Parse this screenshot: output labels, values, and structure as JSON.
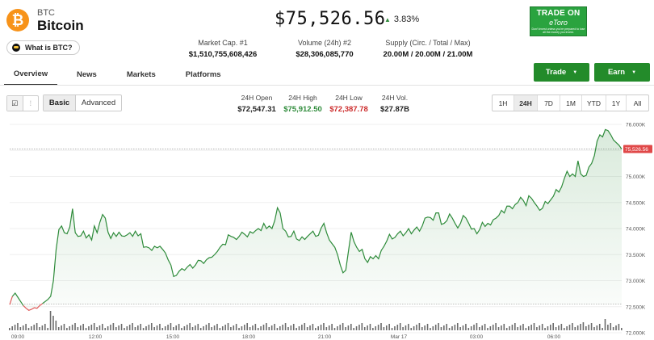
{
  "coin": {
    "symbol": "BTC",
    "name": "Bitcoin",
    "icon_glyph": "₿",
    "icon": "bitcoin-icon",
    "what_is": "What is BTC?"
  },
  "price": {
    "value": "$75,526.56",
    "change": "3.83%",
    "direction": "up"
  },
  "stats": [
    {
      "label": "Market Cap. #1",
      "value": "$1,510,755,608,426"
    },
    {
      "label": "Volume (24h) #2",
      "value": "$28,306,085,770"
    },
    {
      "label": "Supply (Circ. / Total / Max)",
      "value": "20.00M / 20.00M / 21.00M"
    }
  ],
  "ad": {
    "line1": "TRADE ON",
    "line2": "eToro",
    "disclaimer": "Don't invest unless you're prepared to lose all the money you invest."
  },
  "tabs": [
    {
      "label": "Overview",
      "active": true
    },
    {
      "label": "News"
    },
    {
      "label": "Markets"
    },
    {
      "label": "Platforms"
    }
  ],
  "actions": {
    "trade": "Trade",
    "earn": "Earn"
  },
  "chart_mode": {
    "basic": "Basic",
    "advanced": "Advanced"
  },
  "ohlc": [
    {
      "label": "24H Open",
      "value": "$72,547.31",
      "color": "#222222"
    },
    {
      "label": "24H High",
      "value": "$75,912.50",
      "color": "#2e8b3a"
    },
    {
      "label": "24H Low",
      "value": "$72,387.78",
      "color": "#cc2b2b"
    },
    {
      "label": "24H Vol.",
      "value": "$27.87B",
      "color": "#222222"
    }
  ],
  "ranges": [
    "1H",
    "24H",
    "7D",
    "1M",
    "YTD",
    "1Y",
    "All"
  ],
  "active_range": "24H",
  "colors": {
    "accent_green": "#238b2a",
    "line_up": "#2e8b3a",
    "line_down": "#e05b5b",
    "price_label": "#e04848"
  },
  "chart_data": {
    "type": "line",
    "x_ticks": [
      "09:00",
      "12:00",
      "15:00",
      "18:00",
      "21:00",
      "Mar 17",
      "03:00",
      "06:00"
    ],
    "y_ticks": [
      "76.000K",
      "75.500K",
      "75.000K",
      "74.500K",
      "74.000K",
      "73.500K",
      "73.000K",
      "72.500K",
      "72.000K"
    ],
    "ylim": [
      72000,
      76000
    ],
    "open": 72547.31,
    "last_price_label": "75,526.56",
    "last_price": 75526.56,
    "price": [
      72540,
      72700,
      72760,
      72680,
      72600,
      72520,
      72470,
      72430,
      72450,
      72480,
      72470,
      72520,
      72560,
      72600,
      72640,
      72700,
      73000,
      73600,
      73980,
      74050,
      73920,
      73900,
      74030,
      74380,
      73920,
      73850,
      73860,
      73950,
      73820,
      73880,
      73780,
      74050,
      73920,
      74120,
      74270,
      74200,
      73930,
      73810,
      73920,
      73850,
      73930,
      73860,
      73850,
      73880,
      73920,
      73850,
      73950,
      73860,
      73900,
      73640,
      73650,
      73630,
      73580,
      73660,
      73630,
      73660,
      73600,
      73530,
      73400,
      73300,
      73080,
      73100,
      73180,
      73230,
      73200,
      73260,
      73310,
      73240,
      73300,
      73390,
      73380,
      73330,
      73400,
      73440,
      73450,
      73500,
      73560,
      73640,
      73700,
      73690,
      73880,
      73850,
      73830,
      73790,
      73850,
      73930,
      73890,
      73840,
      73940,
      73910,
      73960,
      74000,
      73960,
      74100,
      74000,
      74050,
      74000,
      74150,
      74400,
      74300,
      74000,
      73950,
      73840,
      73850,
      73950,
      73800,
      73770,
      73840,
      73790,
      73850,
      73900,
      73950,
      73850,
      73870,
      74010,
      74100,
      73920,
      73780,
      73710,
      73640,
      73500,
      73300,
      73150,
      73200,
      73570,
      73930,
      73750,
      73640,
      73560,
      73600,
      73420,
      73350,
      73460,
      73420,
      73480,
      73420,
      73580,
      73660,
      73760,
      73890,
      73800,
      73830,
      73900,
      73950,
      73860,
      73920,
      74000,
      73900,
      73970,
      74030,
      73950,
      74050,
      74200,
      74220,
      74210,
      74160,
      74300,
      74300,
      74080,
      74100,
      74150,
      74280,
      74200,
      74100,
      74010,
      74100,
      74250,
      74200,
      74100,
      73990,
      74000,
      73900,
      73980,
      74120,
      74040,
      74100,
      74070,
      74170,
      74200,
      74250,
      74350,
      74300,
      74430,
      74430,
      74380,
      74460,
      74500,
      74600,
      74540,
      74440,
      74630,
      74580,
      74500,
      74430,
      74350,
      74390,
      74520,
      74480,
      74550,
      74620,
      74750,
      74700,
      74800,
      74960,
      75100,
      75000,
      75050,
      75000,
      75300,
      75050,
      75000,
      75020,
      75180,
      75250,
      75400,
      75680,
      75800,
      75760,
      75900,
      75880,
      75800,
      75700,
      75650,
      75600,
      75526
    ]
  }
}
